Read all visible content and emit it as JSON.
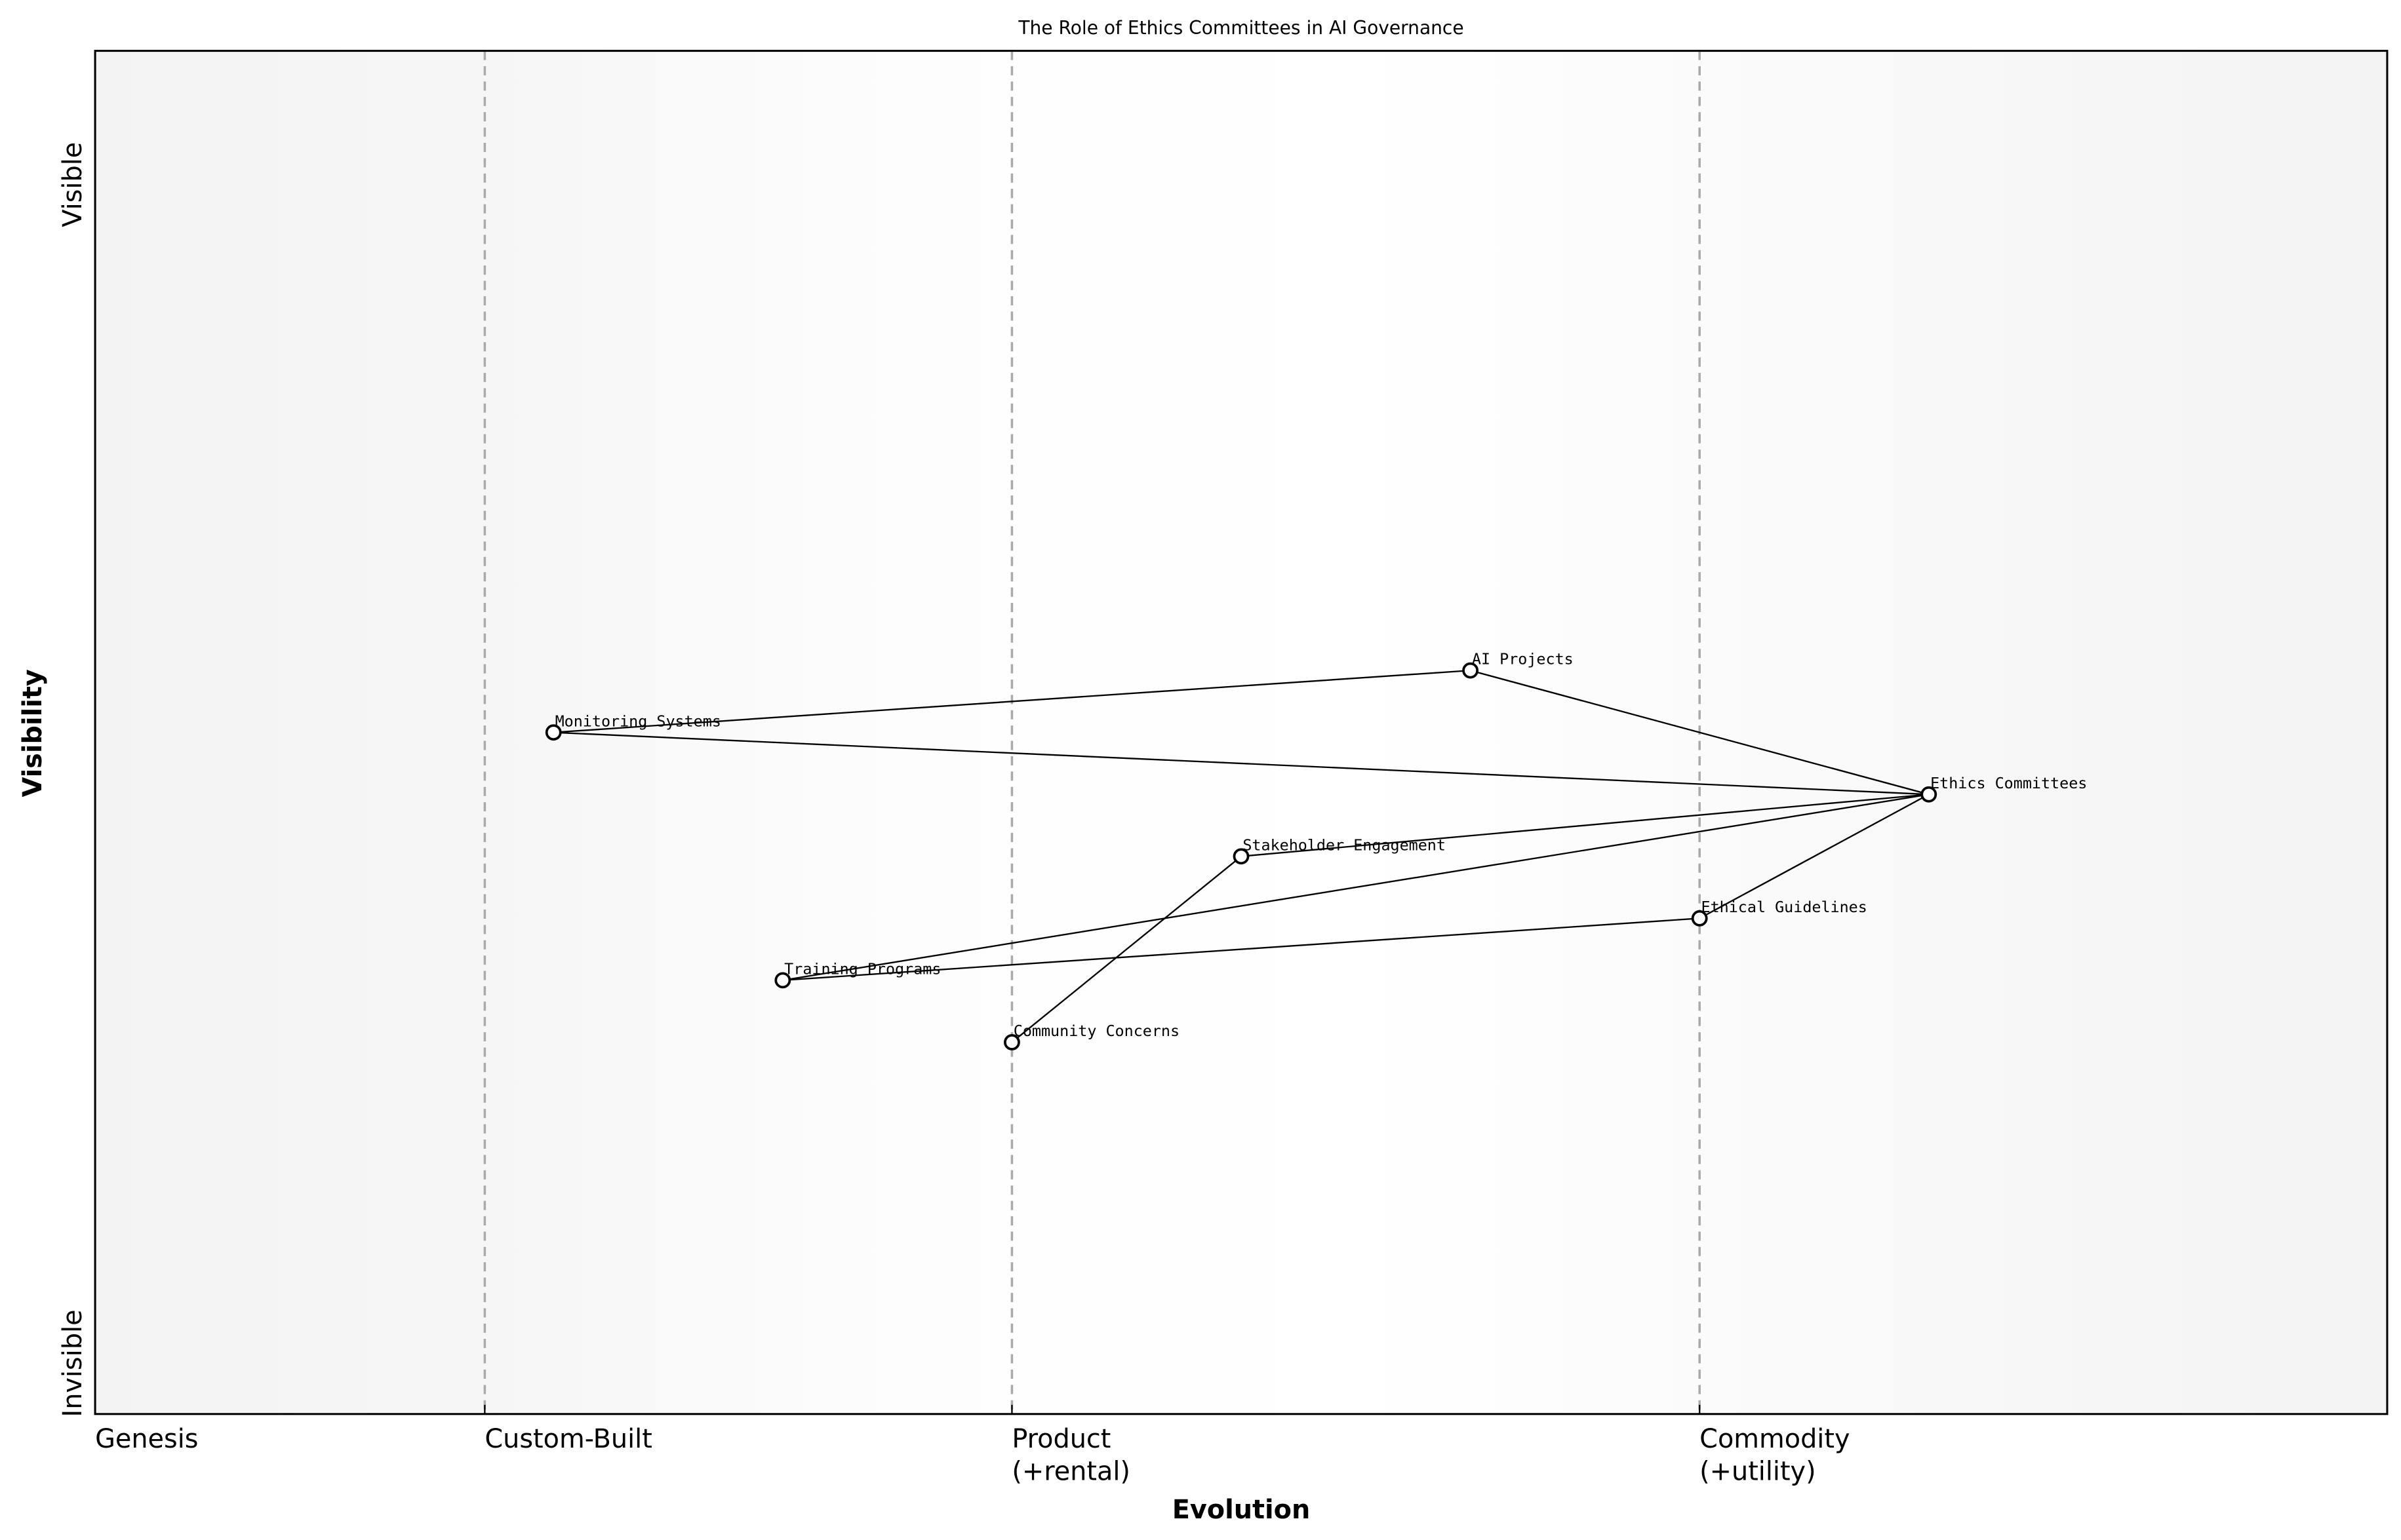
{
  "chart_data": {
    "type": "scatter",
    "title": "The Role of Ethics Committees in AI Governance",
    "xlabel": "Evolution",
    "ylabel": "Visibility",
    "xlim": [
      0,
      1
    ],
    "ylim": [
      0,
      1.1
    ],
    "grid": false,
    "x_stage_ticks": [
      {
        "value": 0.0,
        "label": "Genesis"
      },
      {
        "value": 0.17,
        "label": "Custom-Built"
      },
      {
        "value": 0.4,
        "label": "Product\n(+rental)"
      },
      {
        "value": 0.7,
        "label": "Commodity\n(+utility)"
      }
    ],
    "stage_boundaries": [
      0.17,
      0.4,
      0.7
    ],
    "y_labels": {
      "top": "Visible",
      "bottom": "Invisible"
    },
    "nodes": [
      {
        "name": "Monitoring Systems",
        "x": 0.2,
        "y": 0.55
      },
      {
        "name": "AI Projects",
        "x": 0.6,
        "y": 0.6
      },
      {
        "name": "Ethics Committees",
        "x": 0.8,
        "y": 0.5
      },
      {
        "name": "Stakeholder Engagement",
        "x": 0.5,
        "y": 0.45
      },
      {
        "name": "Ethical Guidelines",
        "x": 0.7,
        "y": 0.4
      },
      {
        "name": "Training Programs",
        "x": 0.3,
        "y": 0.35
      },
      {
        "name": "Community Concerns",
        "x": 0.4,
        "y": 0.3
      }
    ],
    "links": [
      [
        "Monitoring Systems",
        "AI Projects"
      ],
      [
        "AI Projects",
        "Ethics Committees"
      ],
      [
        "Monitoring Systems",
        "Ethics Committees"
      ],
      [
        "Stakeholder Engagement",
        "Ethics Committees"
      ],
      [
        "Training Programs",
        "Ethics Committees"
      ],
      [
        "Training Programs",
        "Ethical Guidelines"
      ],
      [
        "Ethical Guidelines",
        "Ethics Committees"
      ],
      [
        "Community Concerns",
        "Stakeholder Engagement"
      ]
    ],
    "colors": {
      "edge_fill": "#f4f4f4",
      "center_fill": "#ffffff",
      "boundary": "#aaaaaa",
      "line": "#000000"
    }
  }
}
